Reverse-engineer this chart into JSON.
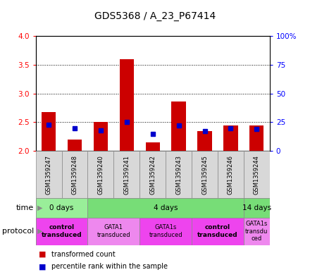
{
  "title": "GDS5368 / A_23_P67414",
  "samples": [
    "GSM1359247",
    "GSM1359248",
    "GSM1359240",
    "GSM1359241",
    "GSM1359242",
    "GSM1359243",
    "GSM1359245",
    "GSM1359246",
    "GSM1359244"
  ],
  "transformed_counts": [
    2.68,
    2.2,
    2.5,
    3.6,
    2.15,
    2.86,
    2.35,
    2.44,
    2.44
  ],
  "percentile_ranks": [
    23,
    20,
    18,
    25,
    15,
    22,
    17,
    20,
    19
  ],
  "ylim": [
    2.0,
    4.0
  ],
  "yticks_left": [
    2.0,
    2.5,
    3.0,
    3.5,
    4.0
  ],
  "yticks_right": [
    0,
    25,
    50,
    75,
    100
  ],
  "bar_color": "#cc0000",
  "dot_color": "#0000cc",
  "time_groups": [
    {
      "label": "0 days",
      "start": 0,
      "end": 2,
      "color": "#99ee99"
    },
    {
      "label": "4 days",
      "start": 2,
      "end": 8,
      "color": "#77dd77"
    },
    {
      "label": "14 days",
      "start": 8,
      "end": 9,
      "color": "#77dd77"
    }
  ],
  "protocol_groups": [
    {
      "label": "control\ntransduced",
      "start": 0,
      "end": 2,
      "color": "#ee44ee",
      "bold": true
    },
    {
      "label": "GATA1\ntransduced",
      "start": 2,
      "end": 4,
      "color": "#ee88ee",
      "bold": false
    },
    {
      "label": "GATA1s\ntransduced",
      "start": 4,
      "end": 6,
      "color": "#ee44ee",
      "bold": false
    },
    {
      "label": "control\ntransduced",
      "start": 6,
      "end": 8,
      "color": "#ee44ee",
      "bold": true
    },
    {
      "label": "GATA1s\ntransdu\nced",
      "start": 8,
      "end": 9,
      "color": "#ee88ee",
      "bold": false
    }
  ],
  "bar_width": 0.55,
  "baseline": 2.0,
  "bg_color": "#f0f0f0",
  "sample_label_color": "#d8d8d8"
}
